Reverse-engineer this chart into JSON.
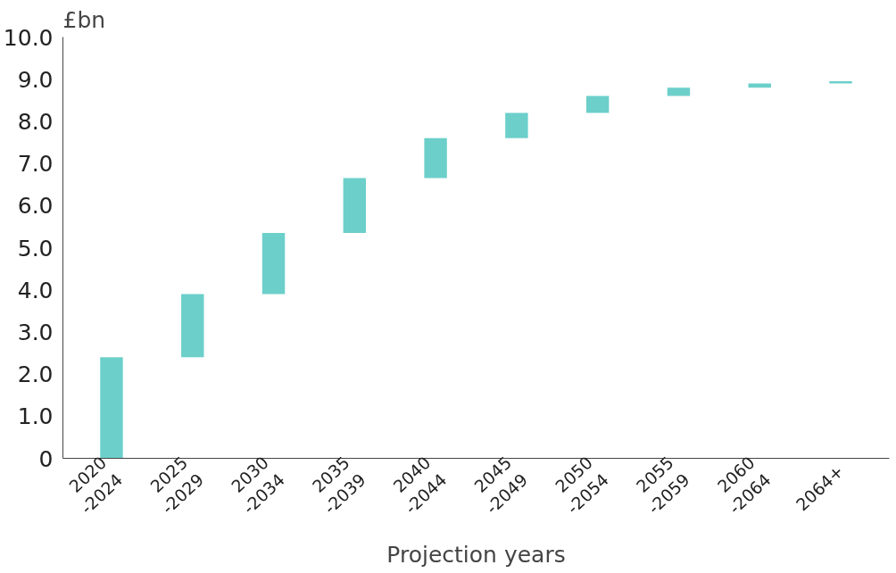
{
  "chart_data": {
    "type": "bar",
    "ylabel": "£bn",
    "xlabel": "Projection years",
    "categories": [
      "2020\n-2024",
      "2025\n-2029",
      "2030\n-2034",
      "2035\n-2039",
      "2040\n-2044",
      "2045\n-2049",
      "2050\n-2054",
      "2055\n-2059",
      "2060\n-2064",
      "2064+"
    ],
    "base": [
      0,
      2.4,
      3.9,
      5.35,
      6.65,
      7.6,
      8.2,
      8.6,
      8.8,
      8.9
    ],
    "values": [
      2.4,
      1.5,
      1.45,
      1.3,
      0.95,
      0.6,
      0.4,
      0.2,
      0.1,
      0.05
    ],
    "color": "#6ccfca",
    "ylim": [
      0,
      10
    ],
    "yticks": [
      0,
      {
        "value": 1,
        "label": "1.0"
      },
      {
        "value": 2,
        "label": "2.0"
      },
      {
        "value": 3,
        "label": "3.0"
      },
      {
        "value": 4,
        "label": "4.0"
      },
      {
        "value": 5,
        "label": "5.0"
      },
      {
        "value": 6,
        "label": "6.0"
      },
      {
        "value": 7,
        "label": "7.0"
      },
      {
        "value": 8,
        "label": "8.0"
      },
      {
        "value": 9,
        "label": "9.0"
      },
      {
        "value": 10,
        "label": "10.0"
      }
    ],
    "grid": false
  }
}
